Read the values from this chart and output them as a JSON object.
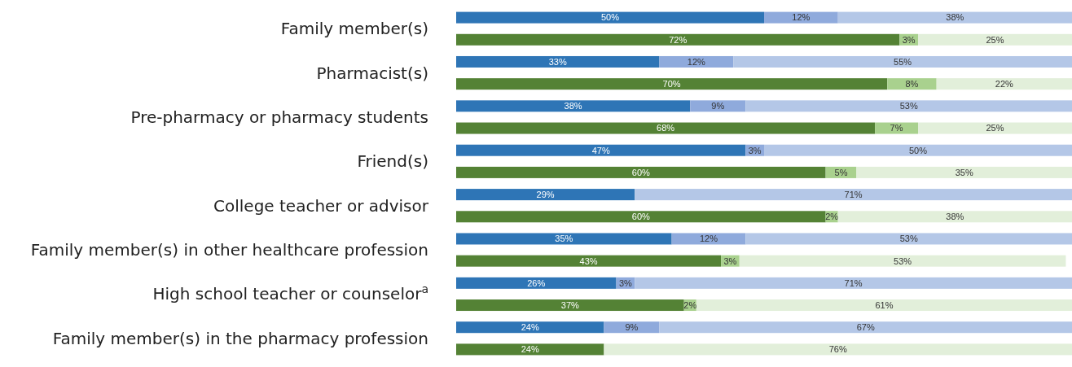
{
  "chart_data": {
    "type": "bar",
    "orientation": "horizontal",
    "stacked": true,
    "xlim": [
      0,
      100
    ],
    "categories": [
      "Family member(s)",
      null,
      "Pharmacist(s)",
      null,
      "Pre-pharmacy or pharmacy students",
      null,
      "Friend(s)",
      null,
      "College teacher or advisor",
      null,
      "Family member(s) in other  healthcare profession",
      null,
      "High school teacher or counselor$^{a}$",
      null,
      "Family member(s) in the pharmacy profession",
      null
    ],
    "series": [
      {
        "colors": [
          "#2e75b6",
          "#548235",
          "#2e75b6",
          "#548235",
          "#2e75b6",
          "#548235",
          "#2e75b6",
          "#548235",
          "#2e75b6",
          "#548235",
          "#2e75b6",
          "#548235",
          "#2e75b6",
          "#548235",
          "#2e75b6",
          "#548235"
        ],
        "values": [
          50,
          72,
          33,
          70,
          38,
          68,
          47,
          60,
          29,
          60,
          35,
          43,
          26,
          37,
          24,
          24
        ],
        "value_labels": [
          "50%",
          "72%",
          "33%",
          "70%",
          "38%",
          "68%",
          "47%",
          "60%",
          "29%",
          "60%",
          "35%",
          "43%",
          "26%",
          "37%",
          "24%",
          "24%"
        ]
      },
      {
        "colors": [
          "#8faadc",
          "#a9d18e",
          "#8faadc",
          "#a9d18e",
          "#8faadc",
          "#a9d18e",
          "#8faadc",
          "#a9d18e",
          "#8faadc",
          "#a9d18e",
          "#8faadc",
          "#a9d18e",
          "#8faadc",
          "#a9d18e",
          "#8faadc",
          "#a9d18e"
        ],
        "values": [
          12,
          3,
          12,
          8,
          9,
          7,
          3,
          5,
          null,
          2,
          12,
          3,
          3,
          2,
          9,
          null
        ],
        "value_labels": [
          "12%",
          "3%",
          "12%",
          "8%",
          "9%",
          "7%",
          "3%",
          "5%",
          null,
          "2%",
          "12%",
          "3%",
          "3%",
          "2%",
          "9%",
          null
        ]
      },
      {
        "colors": [
          "#b4c7e7",
          "#e2efda",
          "#b4c7e7",
          "#e2efda",
          "#b4c7e7",
          "#e2efda",
          "#b4c7e7",
          "#e2efda",
          "#b4c7e7",
          "#e2efda",
          "#b4c7e7",
          "#e2efda",
          "#b4c7e7",
          "#e2efda",
          "#b4c7e7",
          "#e2efda"
        ],
        "values": [
          38,
          25,
          55,
          22,
          53,
          25,
          50,
          35,
          71,
          38,
          53,
          53,
          71,
          61,
          67,
          76
        ],
        "value_labels": [
          "38%",
          "25%",
          "55%",
          "22%",
          "53%",
          "25%",
          "50%",
          "35%",
          "71%",
          "38%",
          "53%",
          "53%",
          "71%",
          "61%",
          "67%",
          "76%"
        ]
      }
    ]
  }
}
